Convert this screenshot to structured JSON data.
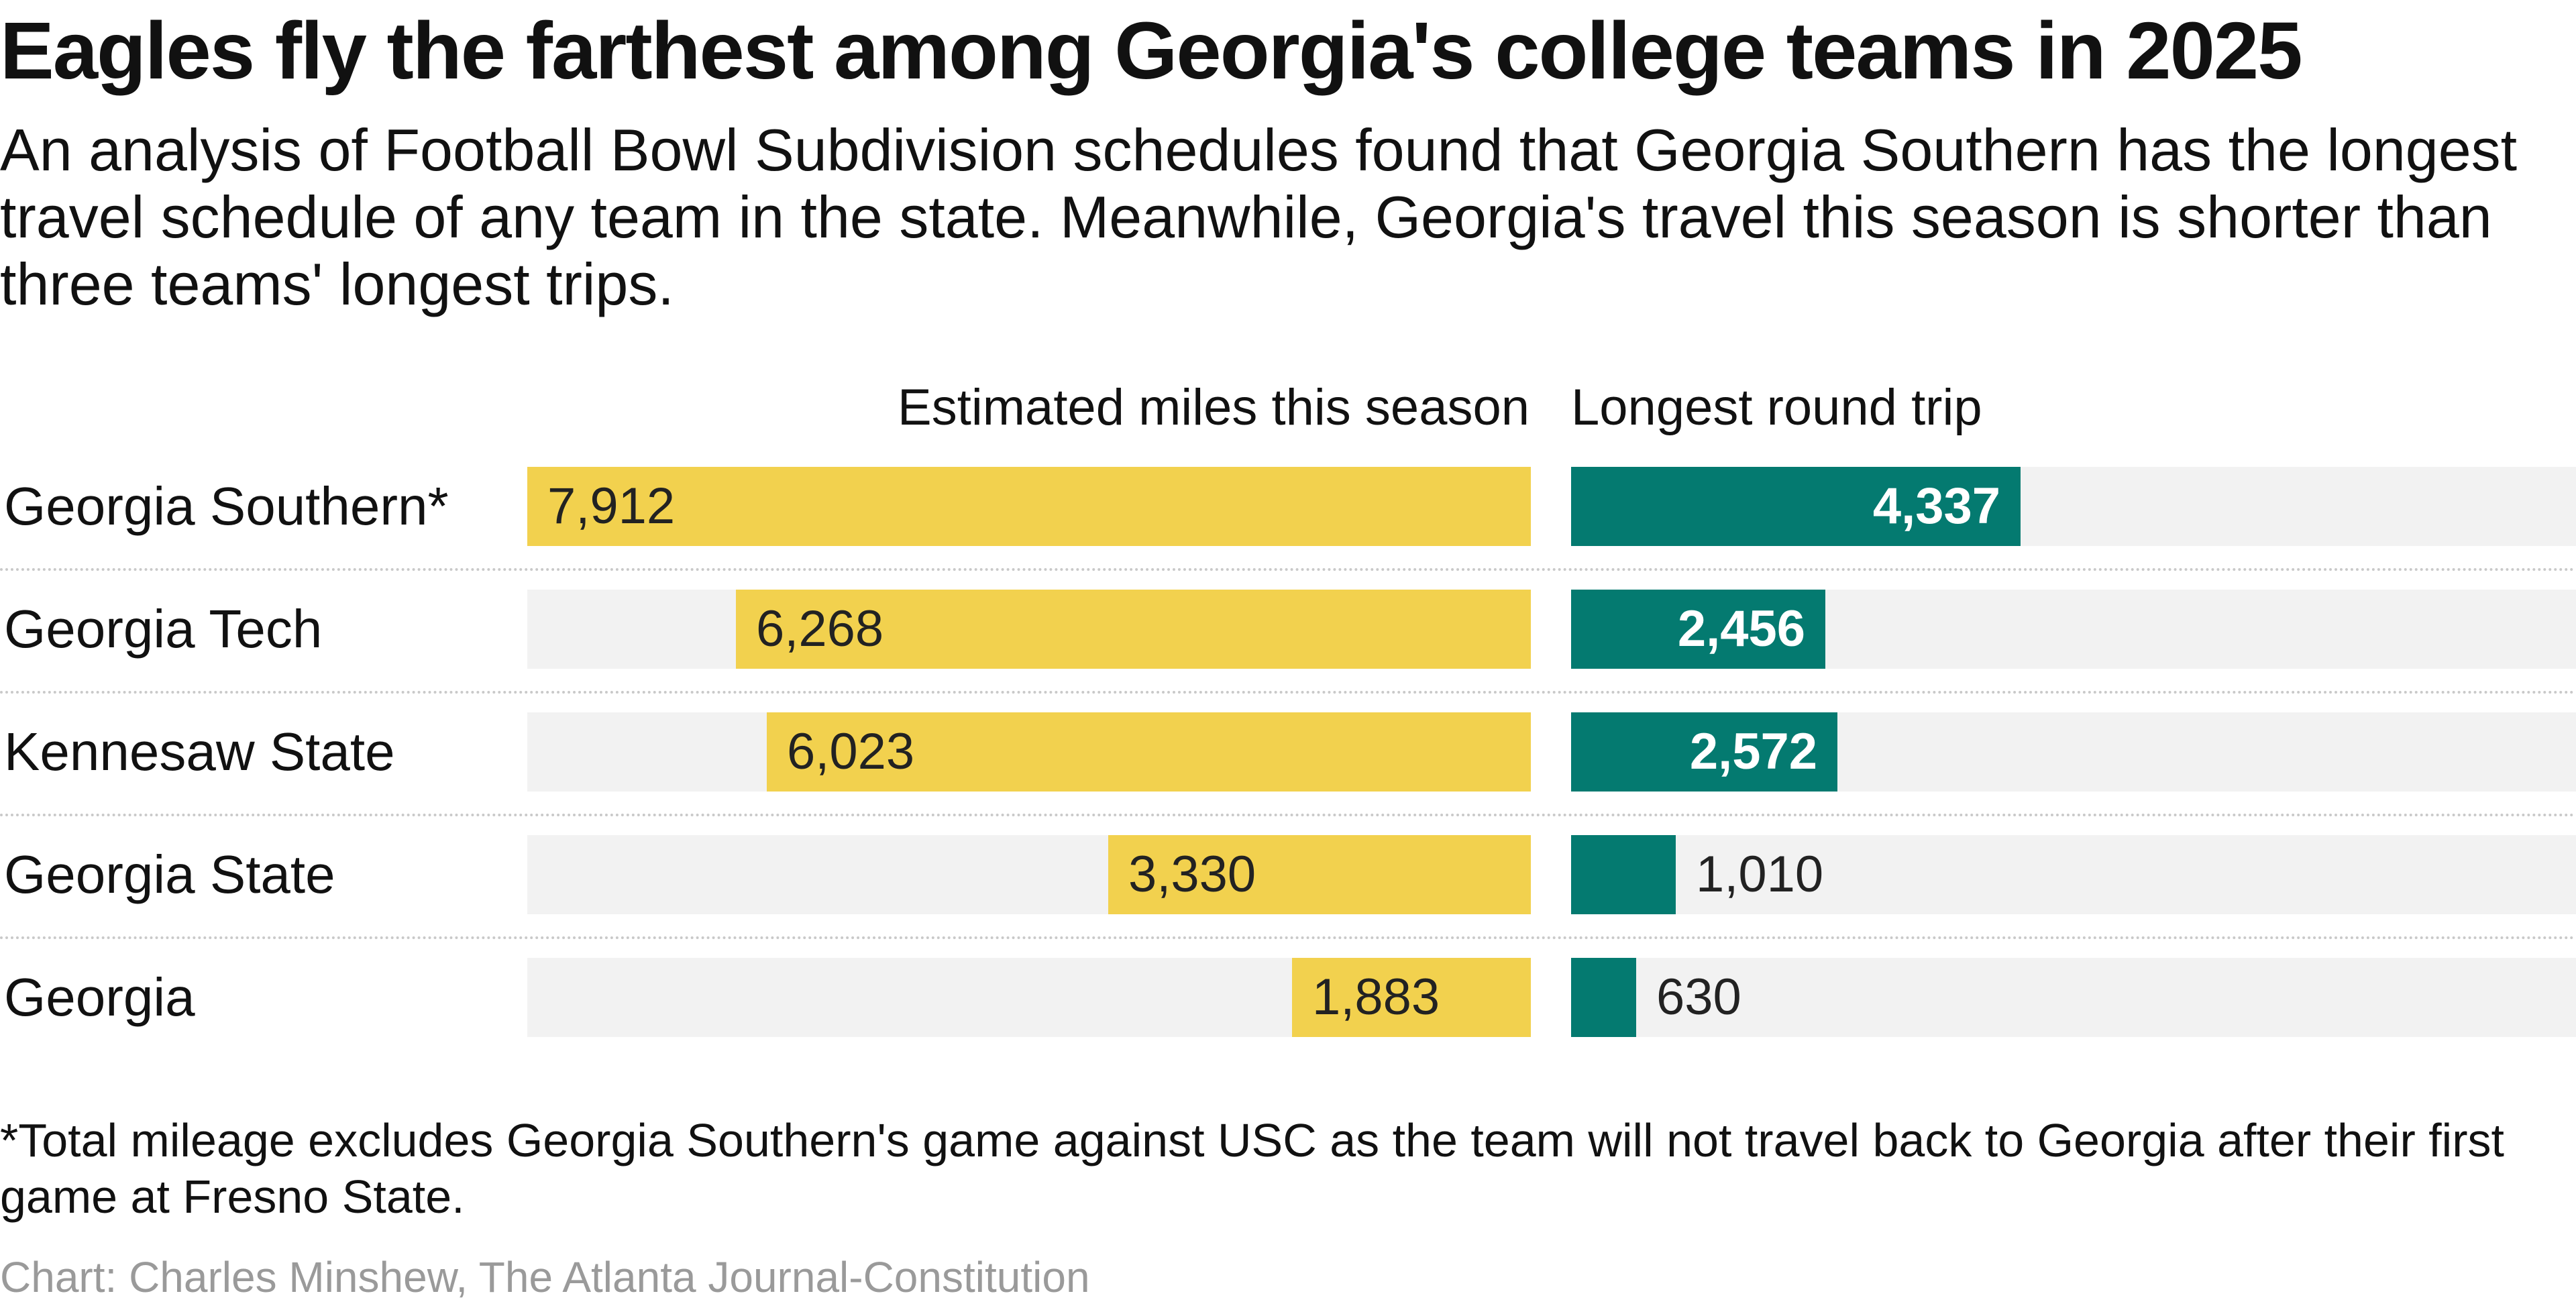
{
  "title": "Eagles fly the farthest among Georgia's college teams in 2025",
  "subtitle": "An analysis of Football Bowl Subdivision schedules found that Georgia Southern has the longest travel schedule of any team in the state. Meanwhile, Georgia's travel this season is shorter than three teams' longest trips.",
  "footnote": "*Total mileage excludes Georgia Southern's game against USC as the team will not travel back to Georgia after their first game at Fresno State.",
  "credit": "Chart: Charles Minshew, The Atlanta Journal-Constitution",
  "colors": {
    "miles_bar": "#f2d14e",
    "trip_bar": "#047a70",
    "track": "#f2f2f2"
  },
  "chart_data": {
    "type": "bar",
    "orientation": "horizontal",
    "categories": [
      "Georgia Southern*",
      "Georgia Tech",
      "Kennesaw State",
      "Georgia State",
      "Georgia"
    ],
    "series": [
      {
        "name": "Estimated miles this season",
        "values": [
          7912,
          6268,
          6023,
          3330,
          1883
        ],
        "labels": [
          "7,912",
          "6,268",
          "6,023",
          "3,330",
          "1,883"
        ],
        "color": "#f2d14e",
        "xlim": [
          0,
          7912
        ],
        "direction": "right-to-left"
      },
      {
        "name": "Longest round trip",
        "values": [
          4337,
          2456,
          2572,
          1010,
          630
        ],
        "labels": [
          "4,337",
          "2,456",
          "2,572",
          "1,010",
          "630"
        ],
        "color": "#047a70",
        "xlim": [
          0,
          9700
        ],
        "direction": "left-to-right"
      }
    ],
    "title": "Eagles fly the farthest among Georgia's college teams in 2025",
    "xlabel": "",
    "ylabel": ""
  }
}
